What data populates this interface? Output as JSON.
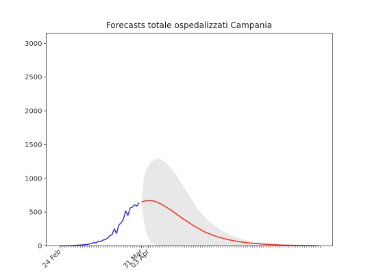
{
  "chart_data": {
    "type": "line",
    "title": "Forecasts totale ospedalizzati Campania",
    "xlabel": "",
    "ylabel": "",
    "x_start": "2020-02-24",
    "x_end": "2020-06-18",
    "ylim": [
      0,
      3150
    ],
    "y_ticks": [
      0,
      500,
      1000,
      1500,
      2000,
      2500,
      3000
    ],
    "x_ticks": [
      {
        "date": "2020-02-24",
        "label": "24 Feb"
      },
      {
        "date": "2020-03-31",
        "label": "31 Mar"
      },
      {
        "date": "2020-04-03",
        "label": "03 Apr"
      }
    ],
    "grid": false,
    "series": [
      {
        "kind": "observed",
        "color": "#3333dd",
        "points": [
          [
            "2020-02-24",
            0
          ],
          [
            "2020-02-26",
            1
          ],
          [
            "2020-02-28",
            3
          ],
          [
            "2020-03-01",
            6
          ],
          [
            "2020-03-03",
            10
          ],
          [
            "2020-03-05",
            15
          ],
          [
            "2020-03-07",
            22
          ],
          [
            "2020-03-09",
            35
          ],
          [
            "2020-03-10",
            50
          ],
          [
            "2020-03-11",
            45
          ],
          [
            "2020-03-12",
            70
          ],
          [
            "2020-03-13",
            65
          ],
          [
            "2020-03-14",
            85
          ],
          [
            "2020-03-15",
            95
          ],
          [
            "2020-03-16",
            110
          ],
          [
            "2020-03-17",
            150
          ],
          [
            "2020-03-18",
            165
          ],
          [
            "2020-03-19",
            250
          ],
          [
            "2020-03-20",
            185
          ],
          [
            "2020-03-21",
            310
          ],
          [
            "2020-03-22",
            340
          ],
          [
            "2020-03-23",
            390
          ],
          [
            "2020-03-24",
            520
          ],
          [
            "2020-03-25",
            450
          ],
          [
            "2020-03-26",
            560
          ],
          [
            "2020-03-27",
            575
          ],
          [
            "2020-03-28",
            610
          ],
          [
            "2020-03-29",
            590
          ],
          [
            "2020-03-30",
            640
          ]
        ]
      },
      {
        "kind": "forecast",
        "color": "#ee3322",
        "points": [
          [
            "2020-03-31",
            650
          ],
          [
            "2020-04-02",
            668
          ],
          [
            "2020-04-04",
            672
          ],
          [
            "2020-04-06",
            660
          ],
          [
            "2020-04-09",
            615
          ],
          [
            "2020-04-13",
            530
          ],
          [
            "2020-04-18",
            410
          ],
          [
            "2020-04-23",
            300
          ],
          [
            "2020-04-28",
            205
          ],
          [
            "2020-05-03",
            140
          ],
          [
            "2020-05-08",
            95
          ],
          [
            "2020-05-13",
            62
          ],
          [
            "2020-05-18",
            42
          ],
          [
            "2020-05-23",
            28
          ],
          [
            "2020-05-28",
            18
          ],
          [
            "2020-06-02",
            12
          ],
          [
            "2020-06-08",
            8
          ],
          [
            "2020-06-13",
            5
          ],
          [
            "2020-06-17",
            3
          ]
        ]
      }
    ],
    "band": {
      "color": "#e8e8e8",
      "points": [
        [
          "2020-03-31",
          650,
          650
        ],
        [
          "2020-04-01",
          1000,
          380
        ],
        [
          "2020-04-02",
          1120,
          200
        ],
        [
          "2020-04-04",
          1230,
          60
        ],
        [
          "2020-04-06",
          1285,
          10
        ],
        [
          "2020-04-08",
          1290,
          0
        ],
        [
          "2020-04-11",
          1230,
          0
        ],
        [
          "2020-04-15",
          1070,
          0
        ],
        [
          "2020-04-20",
          800,
          0
        ],
        [
          "2020-04-25",
          540,
          0
        ],
        [
          "2020-04-30",
          360,
          0
        ],
        [
          "2020-05-05",
          235,
          0
        ],
        [
          "2020-05-10",
          150,
          0
        ],
        [
          "2020-05-15",
          95,
          0
        ],
        [
          "2020-05-20",
          60,
          0
        ],
        [
          "2020-05-25",
          38,
          0
        ],
        [
          "2020-05-31",
          22,
          0
        ],
        [
          "2020-06-06",
          12,
          0
        ],
        [
          "2020-06-12",
          7,
          0
        ],
        [
          "2020-06-17",
          4,
          0
        ]
      ]
    }
  }
}
